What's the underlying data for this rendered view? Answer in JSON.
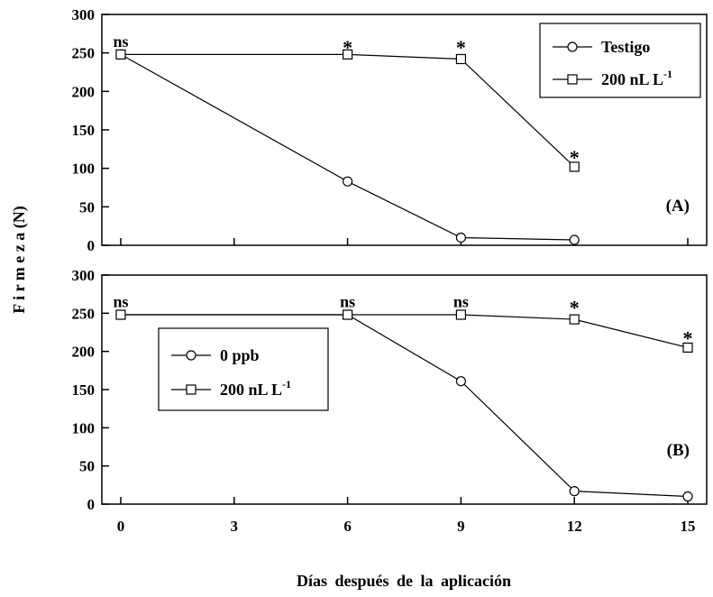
{
  "chart_data": [
    {
      "type": "line",
      "panel_label": "(A)",
      "ylabel": "F i r m e z a  (N)",
      "xlabel": "Días después de la aplicación",
      "ylim": [
        0,
        300
      ],
      "xlim": [
        -0.5,
        15.5
      ],
      "yticks": [
        0,
        50,
        100,
        150,
        200,
        250,
        300
      ],
      "xticks": [
        0,
        3,
        6,
        9,
        12,
        15
      ],
      "legend": {
        "placement": "top-right",
        "entries": [
          {
            "name": "Testigo",
            "marker": "circle"
          },
          {
            "name": "200 nL L",
            "superscript": "-1",
            "marker": "square"
          }
        ]
      },
      "series": [
        {
          "name": "Testigo",
          "marker": "circle",
          "x": [
            0,
            6,
            9,
            12
          ],
          "y": [
            248,
            83,
            10,
            7
          ]
        },
        {
          "name": "200 nL L-1",
          "marker": "square",
          "x": [
            0,
            6,
            9,
            12
          ],
          "y": [
            248,
            248,
            242,
            102
          ]
        }
      ],
      "annotations": [
        {
          "text": "ns",
          "x": 0,
          "y": 258
        },
        {
          "text": "*",
          "x": 6,
          "y": 258
        },
        {
          "text": "*",
          "x": 9,
          "y": 258
        },
        {
          "text": "*",
          "x": 12,
          "y": 115
        }
      ]
    },
    {
      "type": "line",
      "panel_label": "(B)",
      "ylim": [
        0,
        300
      ],
      "xlim": [
        -0.5,
        15.5
      ],
      "yticks": [
        0,
        50,
        100,
        150,
        200,
        250,
        300
      ],
      "xticks": [
        0,
        3,
        6,
        9,
        12,
        15
      ],
      "legend": {
        "placement": "middle-left",
        "entries": [
          {
            "name": "0 ppb",
            "marker": "circle"
          },
          {
            "name": "200 nL L",
            "superscript": "-1",
            "marker": "square"
          }
        ]
      },
      "series": [
        {
          "name": "0 ppb",
          "marker": "circle",
          "x": [
            0,
            6,
            9,
            12,
            15
          ],
          "y": [
            248,
            248,
            161,
            17,
            10
          ]
        },
        {
          "name": "200 nL L-1",
          "marker": "square",
          "x": [
            0,
            6,
            9,
            12,
            15
          ],
          "y": [
            248,
            248,
            248,
            242,
            205
          ]
        }
      ],
      "annotations": [
        {
          "text": "ns",
          "x": 0,
          "y": 258
        },
        {
          "text": "ns",
          "x": 6,
          "y": 258
        },
        {
          "text": "ns",
          "x": 9,
          "y": 258
        },
        {
          "text": "*",
          "x": 12,
          "y": 258
        },
        {
          "text": "*",
          "x": 15,
          "y": 218
        }
      ]
    }
  ]
}
